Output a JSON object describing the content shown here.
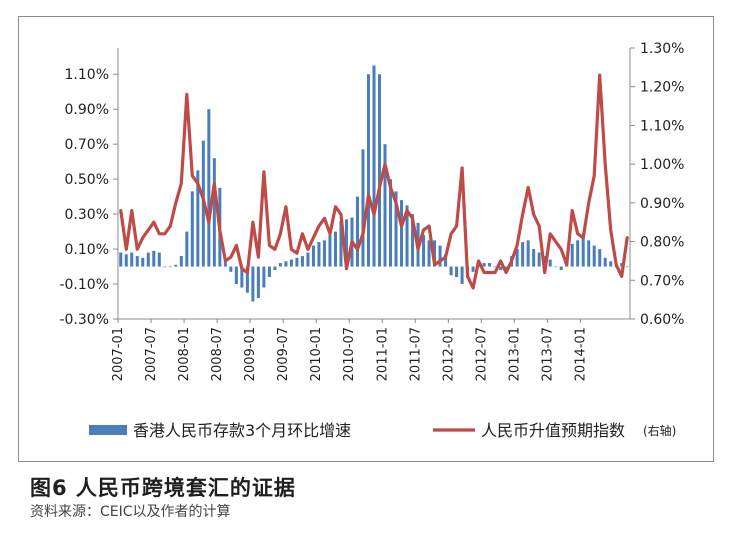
{
  "figure": {
    "title": "图6  人民币跨境套汇的证据",
    "source": "资料来源：CEIC以及作者的计算"
  },
  "chart_data": {
    "type": "bar+line",
    "months": [
      "2007-01",
      "2007-02",
      "2007-03",
      "2007-04",
      "2007-05",
      "2007-06",
      "2007-07",
      "2007-08",
      "2007-09",
      "2007-10",
      "2007-11",
      "2007-12",
      "2008-01",
      "2008-02",
      "2008-03",
      "2008-04",
      "2008-05",
      "2008-06",
      "2008-07",
      "2008-08",
      "2008-09",
      "2008-10",
      "2008-11",
      "2008-12",
      "2009-01",
      "2009-02",
      "2009-03",
      "2009-04",
      "2009-05",
      "2009-06",
      "2009-07",
      "2009-08",
      "2009-09",
      "2009-10",
      "2009-11",
      "2009-12",
      "2010-01",
      "2010-02",
      "2010-03",
      "2010-04",
      "2010-05",
      "2010-06",
      "2010-07",
      "2010-08",
      "2010-09",
      "2010-10",
      "2010-11",
      "2010-12",
      "2011-01",
      "2011-02",
      "2011-03",
      "2011-04",
      "2011-05",
      "2011-06",
      "2011-07",
      "2011-08",
      "2011-09",
      "2011-10",
      "2011-11",
      "2011-12",
      "2012-01",
      "2012-02",
      "2012-03",
      "2012-04",
      "2012-05",
      "2012-06",
      "2012-07",
      "2012-08",
      "2012-09",
      "2012-10",
      "2012-11",
      "2012-12",
      "2013-01",
      "2013-02",
      "2013-03",
      "2013-04",
      "2013-05",
      "2013-06",
      "2013-07",
      "2013-08",
      "2013-09",
      "2013-10",
      "2013-11",
      "2013-12",
      "2014-01",
      "2014-02",
      "2014-03",
      "2014-04",
      "2014-05",
      "2014-06",
      "2014-07",
      "2014-08",
      "2014-09"
    ],
    "x_tick_labels": [
      "2007-01",
      "2007-07",
      "2008-01",
      "2008-07",
      "2009-01",
      "2009-07",
      "2010-01",
      "2010-07",
      "2011-01",
      "2011-07",
      "2012-01",
      "2012-07",
      "2013-01",
      "2013-07",
      "2014-01"
    ],
    "y_left": {
      "ticks": [
        "-0.30%",
        "-0.10%",
        "0.10%",
        "0.30%",
        "0.50%",
        "0.70%",
        "0.90%",
        "1.10%"
      ],
      "min": -0.3,
      "max": 1.25
    },
    "y_right": {
      "ticks": [
        "0.60%",
        "0.70%",
        "0.80%",
        "0.90%",
        "1.00%",
        "1.10%",
        "1.20%",
        "1.30%"
      ],
      "min": 0.6,
      "max": 1.3
    },
    "series": [
      {
        "name": "香港人民币存款3个月环比增速",
        "kind": "bar",
        "axis": "left",
        "color": "#4a7ebb",
        "values": [
          0.08,
          0.07,
          0.08,
          0.06,
          0.05,
          0.08,
          0.09,
          0.08,
          0.0,
          0.0,
          0.01,
          0.06,
          0.2,
          0.43,
          0.55,
          0.72,
          0.9,
          0.62,
          0.45,
          0.04,
          -0.03,
          -0.1,
          -0.12,
          -0.15,
          -0.2,
          -0.18,
          -0.12,
          -0.06,
          -0.02,
          0.02,
          0.03,
          0.04,
          0.05,
          0.06,
          0.08,
          0.12,
          0.14,
          0.15,
          0.18,
          0.2,
          0.26,
          0.27,
          0.28,
          0.4,
          0.67,
          1.1,
          1.15,
          1.1,
          0.7,
          0.5,
          0.43,
          0.38,
          0.35,
          0.3,
          0.25,
          0.18,
          0.15,
          0.15,
          0.12,
          0.07,
          -0.05,
          -0.06,
          -0.1,
          -0.06,
          -0.03,
          0.0,
          0.02,
          0.02,
          0.0,
          -0.02,
          -0.02,
          0.06,
          0.1,
          0.14,
          0.15,
          0.1,
          0.08,
          0.06,
          0.04,
          0.0,
          -0.02,
          0.03,
          0.13,
          0.15,
          0.18,
          0.15,
          0.12,
          0.1,
          0.05,
          0.03,
          0.0,
          0.02,
          0.0
        ]
      },
      {
        "name": "人民币升值预期指数",
        "kind": "line",
        "axis": "right",
        "color": "#be4b48",
        "label_note": "(右轴)",
        "values": [
          0.88,
          0.78,
          0.88,
          0.78,
          0.81,
          0.83,
          0.85,
          0.82,
          0.82,
          0.84,
          0.9,
          0.95,
          1.18,
          0.97,
          0.95,
          0.91,
          0.85,
          0.95,
          0.83,
          0.75,
          0.76,
          0.79,
          0.73,
          0.72,
          0.85,
          0.76,
          0.98,
          0.79,
          0.78,
          0.82,
          0.89,
          0.78,
          0.77,
          0.82,
          0.78,
          0.81,
          0.84,
          0.86,
          0.82,
          0.89,
          0.87,
          0.73,
          0.8,
          0.78,
          0.82,
          0.92,
          0.87,
          0.94,
          1.0,
          0.94,
          0.9,
          0.84,
          0.88,
          0.86,
          0.78,
          0.83,
          0.84,
          0.74,
          0.75,
          0.76,
          0.82,
          0.84,
          0.99,
          0.71,
          0.68,
          0.75,
          0.72,
          0.72,
          0.72,
          0.75,
          0.72,
          0.75,
          0.79,
          0.87,
          0.94,
          0.87,
          0.84,
          0.72,
          0.82,
          0.8,
          0.78,
          0.74,
          0.88,
          0.82,
          0.81,
          0.9,
          0.97,
          1.23,
          1.0,
          0.83,
          0.74,
          0.71,
          0.81
        ]
      }
    ],
    "legend_position": "bottom"
  }
}
